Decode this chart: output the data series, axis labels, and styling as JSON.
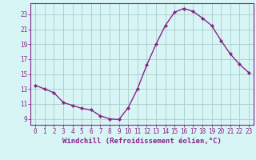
{
  "x": [
    0,
    1,
    2,
    3,
    4,
    5,
    6,
    7,
    8,
    9,
    10,
    11,
    12,
    13,
    14,
    15,
    16,
    17,
    18,
    19,
    20,
    21,
    22,
    23
  ],
  "y": [
    13.5,
    13.0,
    12.5,
    11.2,
    10.8,
    10.4,
    10.2,
    9.4,
    9.0,
    8.9,
    10.5,
    13.0,
    16.2,
    19.0,
    21.5,
    23.3,
    23.8,
    23.4,
    22.5,
    21.5,
    19.5,
    17.7,
    16.3,
    15.2
  ],
  "line_color": "#882288",
  "marker": "D",
  "markersize": 2.2,
  "linewidth": 1.0,
  "bg_color": "#d8f5f5",
  "grid_color": "#aacccc",
  "xlabel": "Windchill (Refroidissement éolien,°C)",
  "xlim": [
    -0.5,
    23.5
  ],
  "ylim": [
    8.2,
    24.5
  ],
  "yticks": [
    9,
    11,
    13,
    15,
    17,
    19,
    21,
    23
  ],
  "xticks": [
    0,
    1,
    2,
    3,
    4,
    5,
    6,
    7,
    8,
    9,
    10,
    11,
    12,
    13,
    14,
    15,
    16,
    17,
    18,
    19,
    20,
    21,
    22,
    23
  ],
  "tick_label_fontsize": 5.5,
  "xlabel_fontsize": 6.5,
  "axis_color": "#882288",
  "tick_color": "#882288"
}
